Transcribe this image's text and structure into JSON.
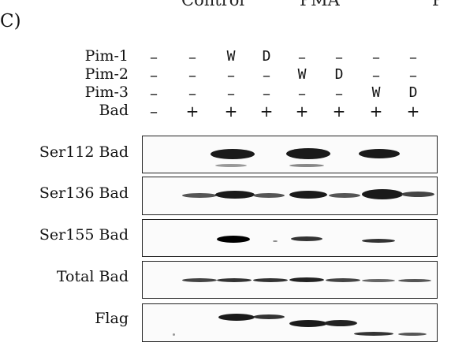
{
  "panel_letter": "C)",
  "header_fragments": [
    "Control",
    "PMA",
    "P"
  ],
  "treatment_rows": [
    {
      "label": "Pim-1",
      "values": [
        "–",
        "–",
        "W",
        "D",
        "–",
        "–",
        "–",
        "–"
      ]
    },
    {
      "label": "Pim-2",
      "values": [
        "–",
        "–",
        "–",
        "–",
        "W",
        "D",
        "–",
        "–"
      ]
    },
    {
      "label": "Pim-3",
      "values": [
        "–",
        "–",
        "–",
        "–",
        "–",
        "–",
        "W",
        "D"
      ]
    },
    {
      "label": "Bad",
      "values": [
        "–",
        "+",
        "+",
        "+",
        "+",
        "+",
        "+",
        "+"
      ]
    }
  ],
  "blots": [
    {
      "label": "Ser112 Bad"
    },
    {
      "label": "Ser136 Bad"
    },
    {
      "label": "Ser155 Bad"
    },
    {
      "label": "Total Bad"
    },
    {
      "label": "Flag"
    }
  ]
}
